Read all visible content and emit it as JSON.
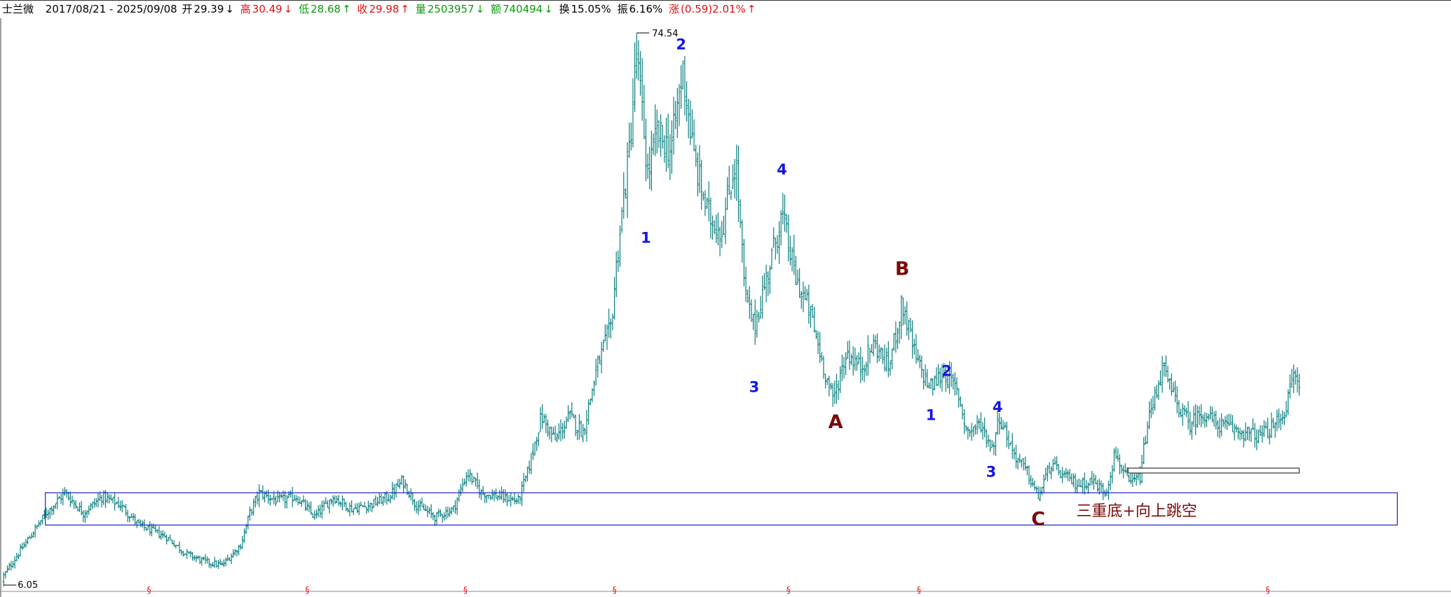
{
  "header": {
    "name": "士兰微",
    "date_range": "2017/08/21 - 2025/09/08",
    "open_label": "开",
    "open_value": "29.39",
    "open_arrow": "↓",
    "high_label": "高",
    "high_value": "30.49",
    "high_arrow": "↓",
    "low_label": "低",
    "low_value": "28.68",
    "low_arrow": "↑",
    "close_label": "收",
    "close_value": "29.98",
    "close_arrow": "↑",
    "volume_label": "量",
    "volume_value": "2503957",
    "volume_arrow": "↓",
    "amount_label": "额",
    "amount_value": "740494",
    "amount_arrow": "↓",
    "turnover_label": "换",
    "turnover_value": "15.05%",
    "amplitude_label": "振",
    "amplitude_value": "6.16%",
    "change_label": "涨",
    "change_value": "(0.59)2.01%",
    "change_arrow": "↑"
  },
  "colors": {
    "candles": "#0a8080",
    "wave_blue": "#1414e6",
    "wave_dark_red": "#7a0a0a",
    "box": "#2020c8",
    "marker_red": "#e01010",
    "header_red": "#e01010",
    "header_green": "#0a9a0a"
  },
  "chart_data": {
    "type": "ohlc",
    "y_axis": {
      "min": 6.05,
      "max": 74.54
    },
    "max_label": "74.54",
    "min_label": "6.05",
    "series_close": [
      [
        0,
        6.5
      ],
      [
        20,
        10.0
      ],
      [
        50,
        15.0
      ],
      [
        70,
        17.5
      ],
      [
        90,
        15.0
      ],
      [
        110,
        17.0
      ],
      [
        130,
        16.0
      ],
      [
        150,
        13.5
      ],
      [
        180,
        12.0
      ],
      [
        200,
        10.0
      ],
      [
        220,
        9.0
      ],
      [
        240,
        8.5
      ],
      [
        260,
        11.0
      ],
      [
        270,
        15.0
      ],
      [
        280,
        17.5
      ],
      [
        300,
        16.5
      ],
      [
        320,
        17.0
      ],
      [
        340,
        14.5
      ],
      [
        360,
        17.0
      ],
      [
        380,
        15.5
      ],
      [
        400,
        16.0
      ],
      [
        420,
        17.0
      ],
      [
        435,
        19.0
      ],
      [
        450,
        16.0
      ],
      [
        470,
        14.5
      ],
      [
        490,
        15.5
      ],
      [
        505,
        20.0
      ],
      [
        520,
        17.5
      ],
      [
        540,
        17.0
      ],
      [
        560,
        16.5
      ],
      [
        570,
        20.0
      ],
      [
        585,
        27.0
      ],
      [
        600,
        24.0
      ],
      [
        615,
        27.0
      ],
      [
        630,
        25.0
      ],
      [
        645,
        33.0
      ],
      [
        660,
        38.0
      ],
      [
        668,
        48.0
      ],
      [
        680,
        60.0
      ],
      [
        688,
        72.0
      ],
      [
        700,
        57.0
      ],
      [
        710,
        62.0
      ],
      [
        725,
        60.0
      ],
      [
        738,
        70.0
      ],
      [
        750,
        59.0
      ],
      [
        765,
        52.0
      ],
      [
        780,
        50.0
      ],
      [
        795,
        59.0
      ],
      [
        805,
        42.0
      ],
      [
        815,
        38.0
      ],
      [
        830,
        45.0
      ],
      [
        845,
        52.0
      ],
      [
        860,
        44.0
      ],
      [
        875,
        40.0
      ],
      [
        888,
        34.0
      ],
      [
        900,
        29.0
      ],
      [
        915,
        35.0
      ],
      [
        930,
        33.0
      ],
      [
        945,
        36.0
      ],
      [
        960,
        33.0
      ],
      [
        975,
        41.0
      ],
      [
        990,
        34.0
      ],
      [
        1005,
        30.5
      ],
      [
        1020,
        32.5
      ],
      [
        1035,
        30.0
      ],
      [
        1045,
        25.0
      ],
      [
        1060,
        26.0
      ],
      [
        1072,
        23.0
      ],
      [
        1080,
        27.0
      ],
      [
        1095,
        22.5
      ],
      [
        1110,
        20.0
      ],
      [
        1122,
        17.0
      ],
      [
        1135,
        21.0
      ],
      [
        1150,
        19.5
      ],
      [
        1165,
        18.5
      ],
      [
        1180,
        19.0
      ],
      [
        1195,
        17.5
      ],
      [
        1205,
        22.5
      ],
      [
        1220,
        18.5
      ],
      [
        1232,
        19.5
      ],
      [
        1240,
        26.0
      ],
      [
        1256,
        33.0
      ],
      [
        1270,
        29.0
      ],
      [
        1285,
        26.0
      ],
      [
        1300,
        27.5
      ],
      [
        1315,
        26.0
      ],
      [
        1330,
        25.5
      ],
      [
        1345,
        25.0
      ],
      [
        1360,
        24.5
      ],
      [
        1375,
        25.5
      ],
      [
        1390,
        28.0
      ],
      [
        1398,
        32.5
      ],
      [
        1405,
        30.0
      ]
    ],
    "wave_labels": [
      {
        "text": "1",
        "x": 698,
        "price": 48.5,
        "color": "blue"
      },
      {
        "text": "2",
        "x": 736,
        "price": 72.5,
        "color": "blue"
      },
      {
        "text": "3",
        "x": 815,
        "price": 30.0,
        "color": "blue"
      },
      {
        "text": "4",
        "x": 845,
        "price": 57.0,
        "color": "blue"
      },
      {
        "text": "A",
        "x": 903,
        "price": 25.5,
        "color": "darkred"
      },
      {
        "text": "B",
        "x": 975,
        "price": 44.5,
        "color": "darkred"
      },
      {
        "text": "1",
        "x": 1006,
        "price": 26.5,
        "color": "blue"
      },
      {
        "text": "2",
        "x": 1023,
        "price": 32.0,
        "color": "blue"
      },
      {
        "text": "4",
        "x": 1078,
        "price": 27.5,
        "color": "blue"
      },
      {
        "text": "3",
        "x": 1071,
        "price": 19.5,
        "color": "blue"
      },
      {
        "text": "C",
        "x": 1122,
        "price": 13.5,
        "color": "darkred"
      }
    ],
    "annotation": "三重底+向上跳空",
    "support_box": {
      "x1": 49,
      "x2": 1510,
      "price_top": 17.5,
      "price_bottom": 13.5
    },
    "gap_box": {
      "x1": 1219,
      "x2": 1404,
      "price": 20.3
    },
    "markers": [
      161,
      332,
      503,
      664,
      852,
      993,
      1370
    ],
    "marker_symbol": "§"
  }
}
